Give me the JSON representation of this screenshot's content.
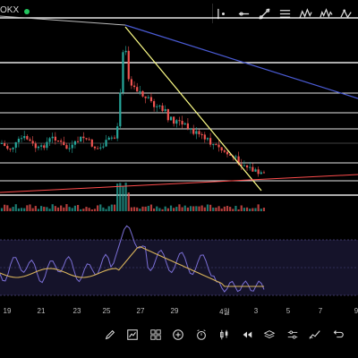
{
  "header": {
    "exchange": "OKX",
    "live_color": "#22c55e"
  },
  "drawing_toolbar": [
    {
      "icon": "cursor-dot-icon"
    },
    {
      "icon": "horizontal-ray-icon"
    },
    {
      "icon": "trendline-icon"
    },
    {
      "icon": "horizontal-lines-icon"
    },
    {
      "icon": "zigzag-pattern-icon"
    },
    {
      "icon": "wave-pattern-icon"
    },
    {
      "icon": "zigzag-peak-icon"
    }
  ],
  "chart": {
    "colors": {
      "up": "#26a69a",
      "down": "#ef5350",
      "support_line": "#ffffff",
      "downtrend_line": "#ffff88",
      "long_trend_line": "#4a5bd4",
      "red_trend_line": "#ff4d4d",
      "rsi_line": "#7b6fd6",
      "rsi_ma_line": "#d8b35a"
    },
    "date_labels": [
      "19",
      "21",
      "23",
      "25",
      "27",
      "29",
      "4월",
      "3",
      "5",
      "7",
      "9"
    ]
  },
  "bottom_toolbar": [
    {
      "icon": "pencil-icon"
    },
    {
      "icon": "chart-indicator-icon"
    },
    {
      "icon": "grid-icon"
    },
    {
      "icon": "add-circle-icon"
    },
    {
      "icon": "alarm-icon"
    },
    {
      "icon": "candle-icon"
    },
    {
      "icon": "replay-icon"
    },
    {
      "icon": "layers-icon"
    },
    {
      "icon": "settings-sliders-icon"
    },
    {
      "icon": "trend-icon"
    },
    {
      "icon": "undo-icon"
    }
  ]
}
